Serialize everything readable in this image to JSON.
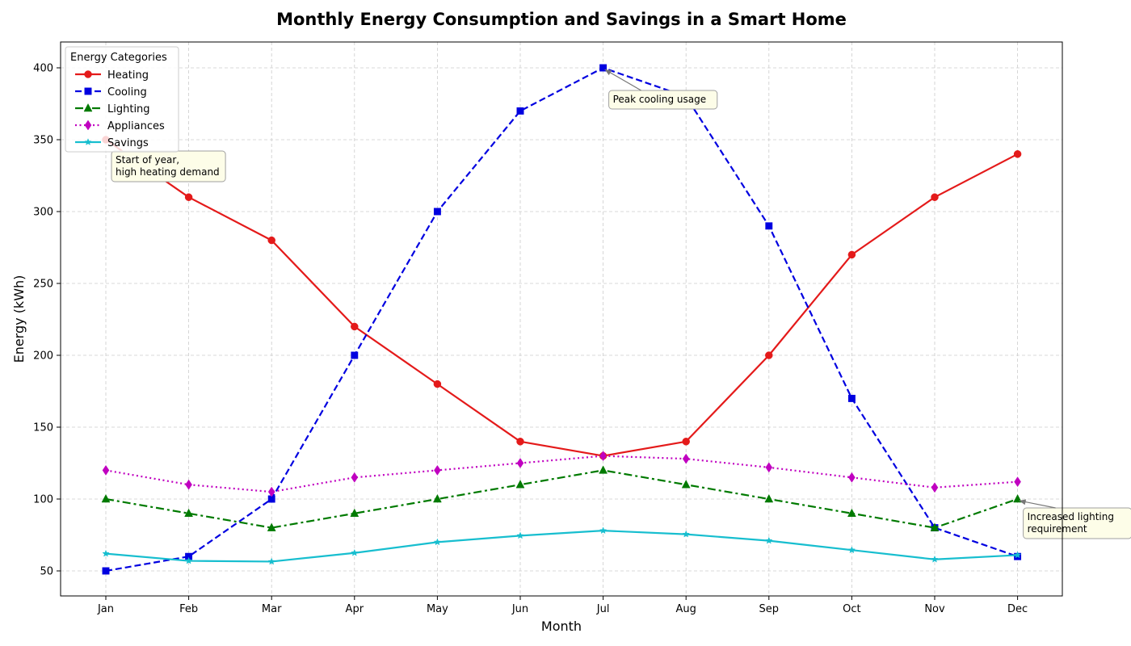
{
  "chart_data": {
    "type": "line",
    "title": "Monthly Energy Consumption and Savings in a Smart Home",
    "xlabel": "Month",
    "ylabel": "Energy (kWh)",
    "categories": [
      "Jan",
      "Feb",
      "Mar",
      "Apr",
      "May",
      "Jun",
      "Jul",
      "Aug",
      "Sep",
      "Oct",
      "Nov",
      "Dec"
    ],
    "ylim": [
      32,
      418
    ],
    "yticks": [
      50,
      100,
      150,
      200,
      250,
      300,
      350,
      400
    ],
    "grid": true,
    "legend": {
      "title": "Energy Categories",
      "placement": "top-left"
    },
    "series": [
      {
        "name": "Heating",
        "color": "#e41a1a",
        "line_style": "solid",
        "marker": "circle",
        "values": [
          350,
          310,
          280,
          220,
          180,
          140,
          130,
          140,
          200,
          270,
          310,
          340
        ]
      },
      {
        "name": "Cooling",
        "color": "#0000e0",
        "line_style": "dashed",
        "marker": "square",
        "values": [
          50,
          60,
          100,
          200,
          300,
          370,
          400,
          380,
          290,
          170,
          80,
          60
        ]
      },
      {
        "name": "Lighting",
        "color": "#007a00",
        "line_style": "dashdot",
        "marker": "triangle",
        "values": [
          100,
          90,
          80,
          90,
          100,
          110,
          120,
          110,
          100,
          90,
          80,
          100
        ]
      },
      {
        "name": "Appliances",
        "color": "#c000c0",
        "line_style": "dotted",
        "marker": "diamond",
        "values": [
          120,
          110,
          105,
          115,
          120,
          125,
          130,
          128,
          122,
          115,
          108,
          112
        ]
      },
      {
        "name": "Savings",
        "color": "#17becf",
        "line_style": "solid",
        "marker": "star",
        "values": [
          62,
          57,
          56.5,
          62.5,
          70,
          74.5,
          78,
          75.5,
          71,
          64.5,
          58,
          61
        ]
      }
    ],
    "annotations": [
      {
        "lines": [
          "Start of year,",
          "high heating demand"
        ],
        "target_category": "Jan",
        "target_value": 350
      },
      {
        "lines": [
          "Peak cooling usage"
        ],
        "target_category": "Jul",
        "target_value": 400
      },
      {
        "lines": [
          "Increased lighting",
          "requirement"
        ],
        "target_category": "Dec",
        "target_value": 100
      }
    ]
  }
}
